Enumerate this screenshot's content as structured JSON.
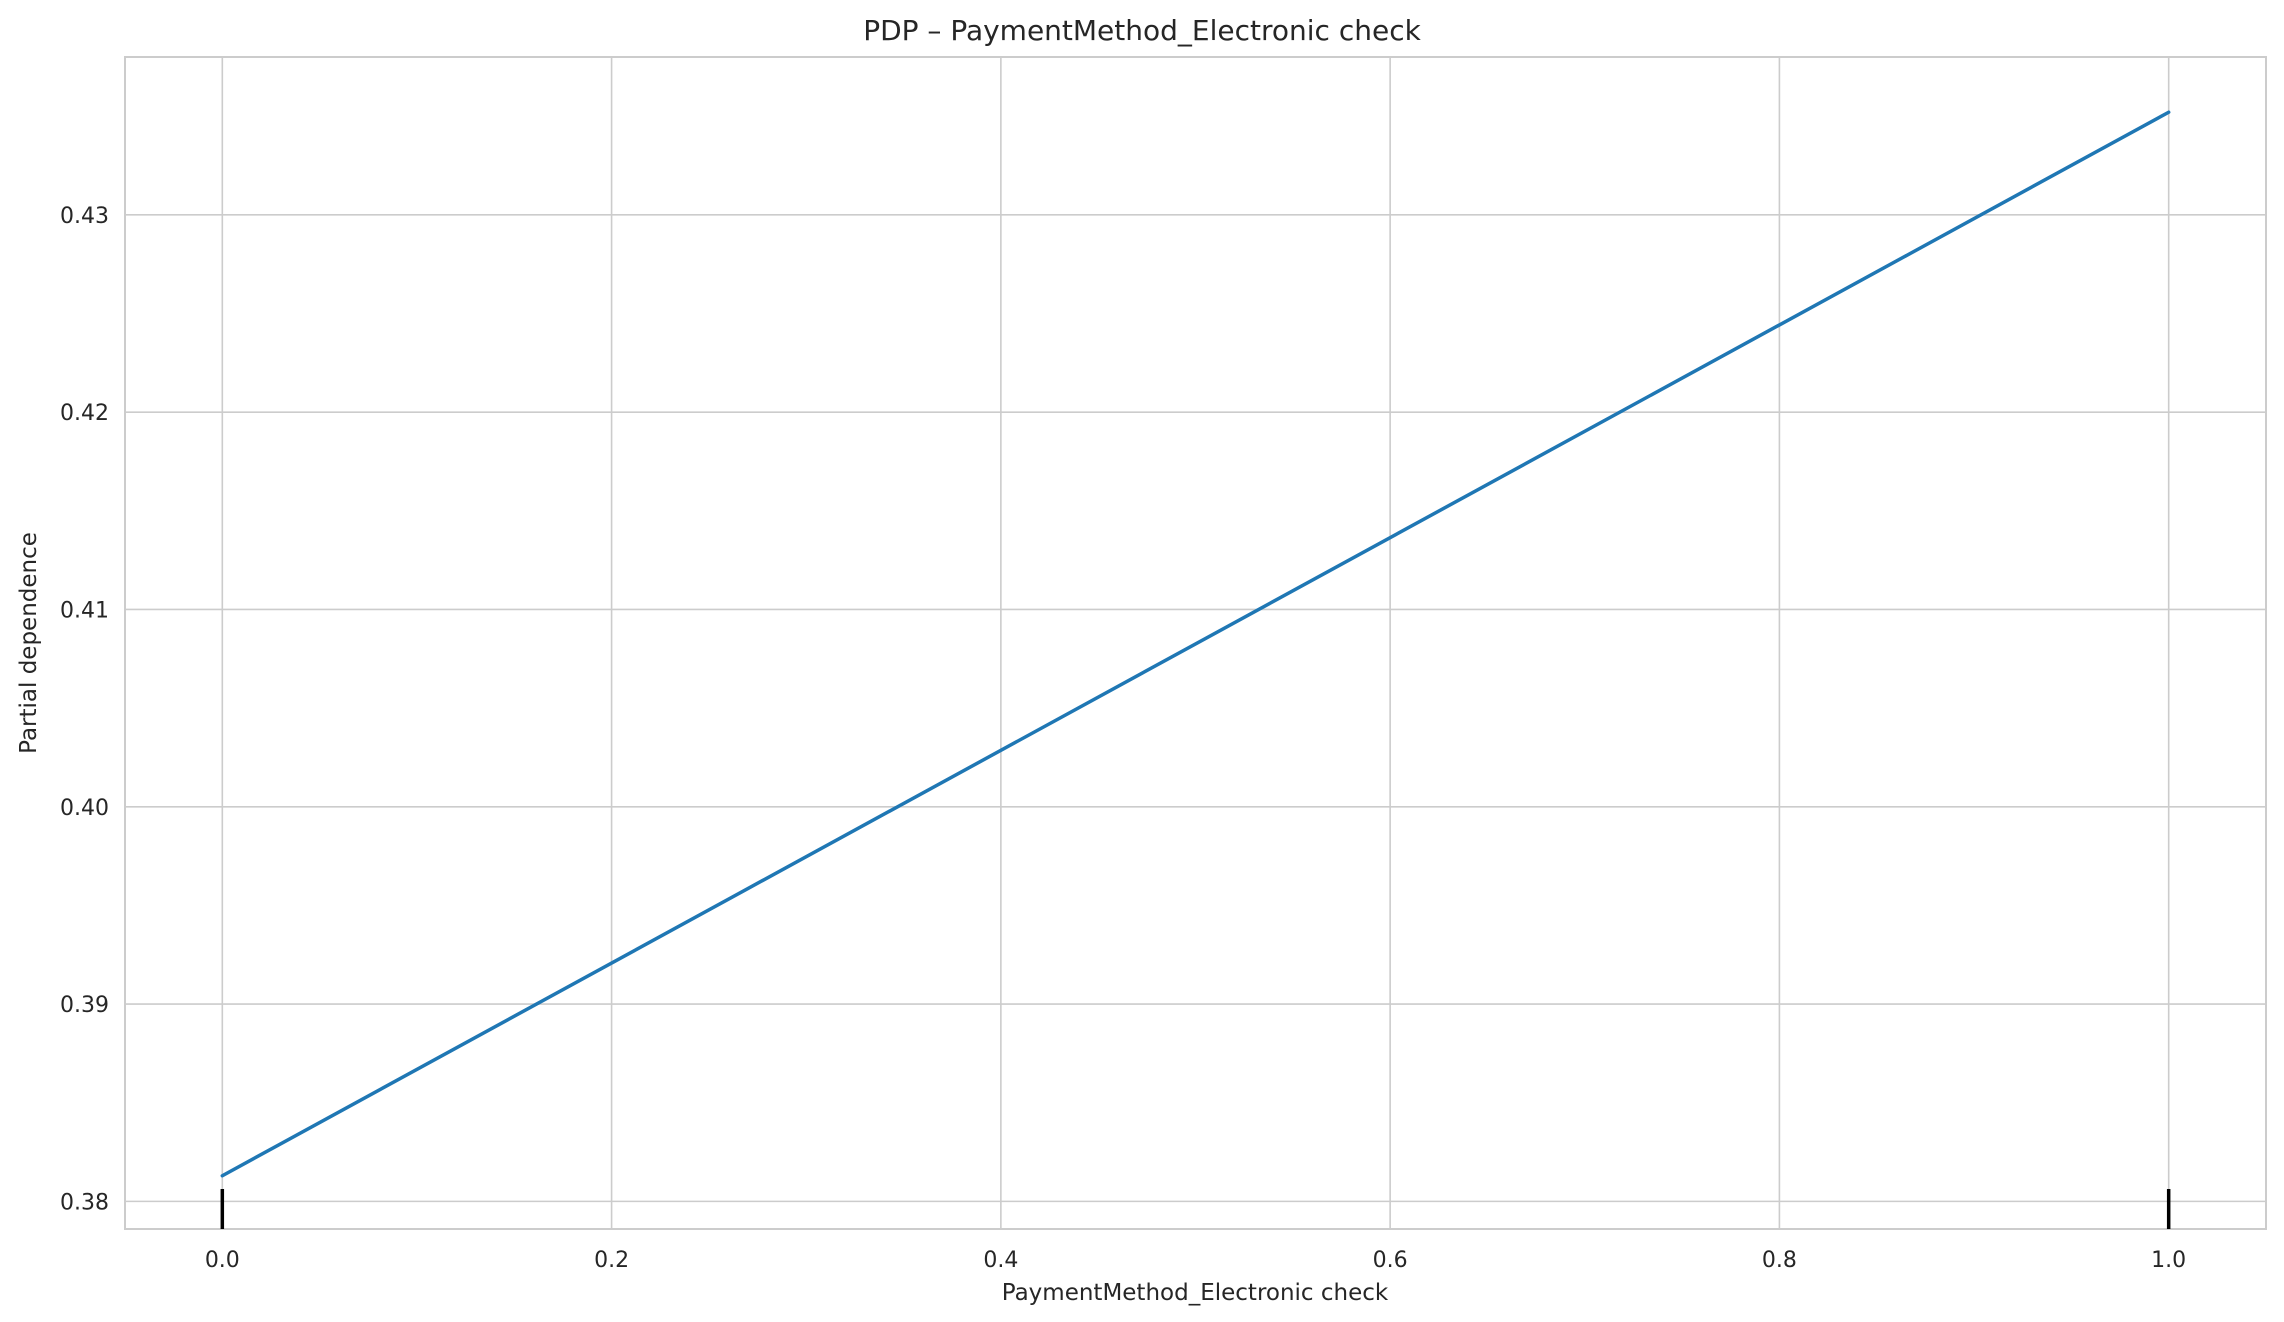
{
  "chart_data": {
    "type": "line",
    "title": "PDP – PaymentMethod_Electronic check",
    "xlabel": "PaymentMethod_Electronic check",
    "ylabel": "Partial dependence",
    "x": [
      0.0,
      1.0
    ],
    "series": [
      {
        "values": [
          0.3813,
          0.4352
        ]
      }
    ],
    "rug": [
      0.0,
      1.0
    ],
    "xlim": [
      -0.05,
      1.05
    ],
    "ylim": [
      0.3786,
      0.438
    ],
    "xticks": [
      0.0,
      0.2,
      0.4,
      0.6,
      0.8,
      1.0
    ],
    "xtick_labels": [
      "0.0",
      "0.2",
      "0.4",
      "0.6",
      "0.8",
      "1.0"
    ],
    "yticks": [
      0.38,
      0.39,
      0.4,
      0.41,
      0.42,
      0.43
    ],
    "ytick_labels": [
      "0.38",
      "0.39",
      "0.40",
      "0.41",
      "0.42",
      "0.43"
    ],
    "grid": true,
    "line_color": "#1f77b4",
    "grid_color": "#cccccc"
  }
}
